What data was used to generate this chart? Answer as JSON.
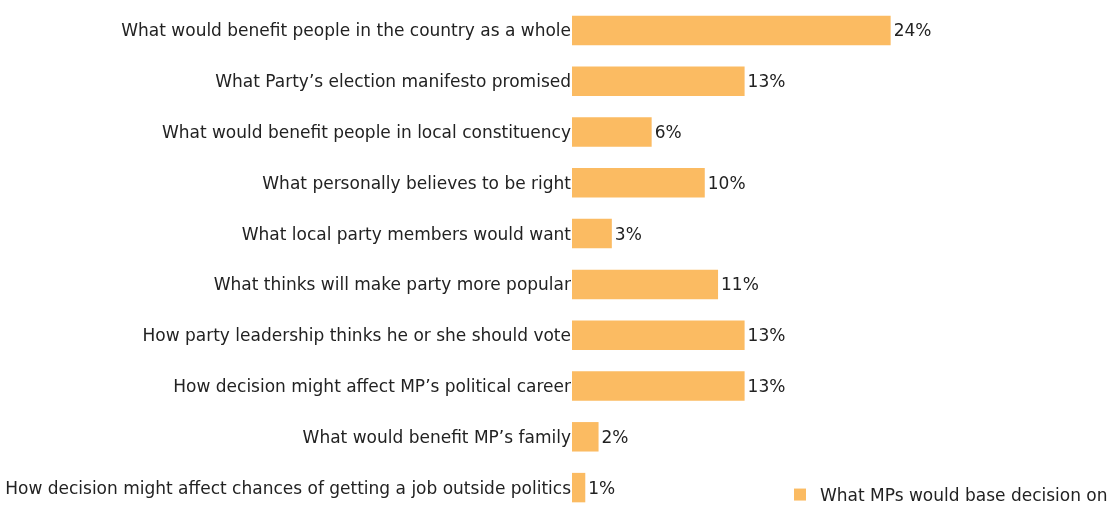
{
  "chart_data": {
    "type": "bar",
    "orientation": "horizontal",
    "categories": [
      "What would benefit people in the country as a whole",
      "What Party’s election manifesto promised",
      "What would benefit people in local constituency",
      "What personally believes to be right",
      "What local party members would want",
      "What thinks will make party more popular",
      "How party leadership thinks he or she should vote",
      "How decision might affect MP’s political career",
      "What would benefit MP’s family",
      "How decision might affect chances of getting a job outside politics"
    ],
    "series": [
      {
        "name": "What MPs would base decision on",
        "color": "#fbbb62",
        "values": [
          24,
          13,
          6,
          10,
          3,
          11,
          13,
          13,
          2,
          1
        ],
        "value_labels": [
          "24%",
          "13%",
          "6%",
          "10%",
          "3%",
          "11%",
          "13%",
          "13%",
          "2%",
          "1%"
        ]
      }
    ],
    "legend": "bottom right",
    "grid": false
  }
}
